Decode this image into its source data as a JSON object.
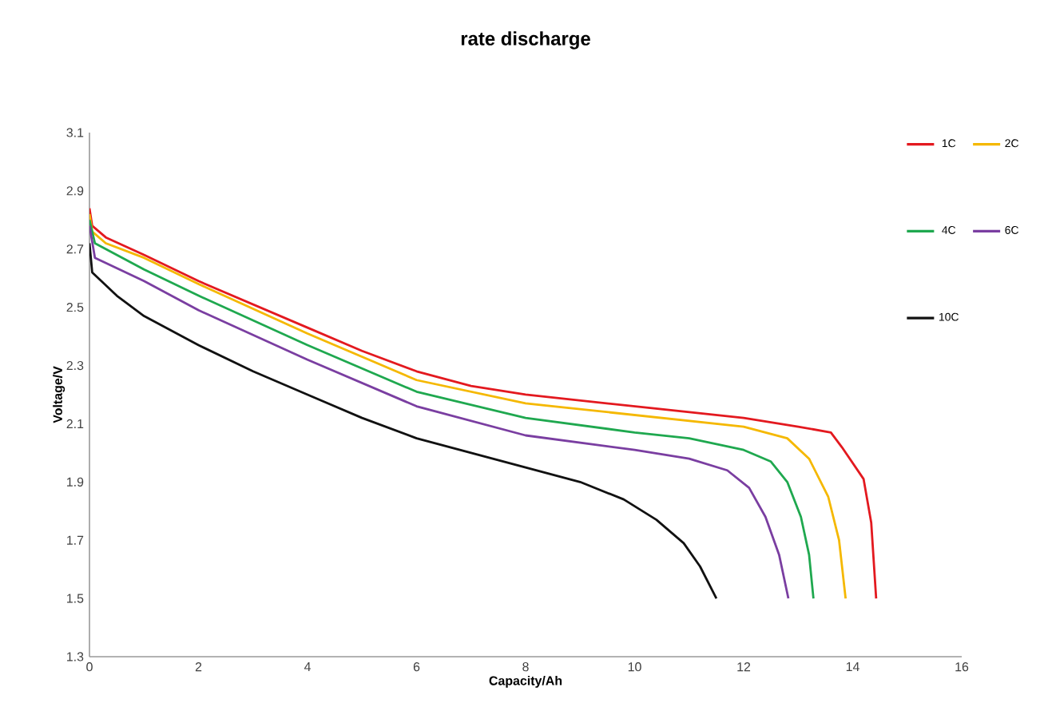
{
  "chart_data": {
    "type": "line",
    "title": "rate discharge",
    "xlabel": "Capacity/Ah",
    "ylabel": "Voltage/V",
    "xlim": [
      0,
      16
    ],
    "xticks": [
      0,
      2,
      4,
      6,
      8,
      10,
      12,
      14,
      16
    ],
    "ylim": [
      1.3,
      3.1
    ],
    "yticks": [
      1.3,
      1.5,
      1.7,
      1.9,
      2.1,
      2.3,
      2.5,
      2.7,
      2.9,
      3.1
    ],
    "legend": "top right",
    "grid": false,
    "series": [
      {
        "name": "1C",
        "color": "#e3191f",
        "x": [
          0,
          0.05,
          0.3,
          1,
          2,
          3,
          4,
          5,
          6,
          7,
          8,
          9,
          10,
          11,
          12,
          13,
          13.6,
          13.8,
          14.2,
          14.34,
          14.43
        ],
        "values": [
          2.84,
          2.78,
          2.74,
          2.68,
          2.59,
          2.51,
          2.43,
          2.35,
          2.28,
          2.23,
          2.2,
          2.18,
          2.16,
          2.14,
          2.12,
          2.09,
          2.07,
          2.02,
          1.91,
          1.76,
          1.5
        ]
      },
      {
        "name": "2C",
        "color": "#f5b800",
        "x": [
          0,
          0.05,
          0.3,
          1,
          2,
          4,
          6,
          8,
          10,
          12,
          12.8,
          13.2,
          13.55,
          13.75,
          13.87
        ],
        "values": [
          2.82,
          2.76,
          2.72,
          2.67,
          2.58,
          2.41,
          2.25,
          2.17,
          2.13,
          2.09,
          2.05,
          1.98,
          1.85,
          1.7,
          1.5
        ]
      },
      {
        "name": "4C",
        "color": "#1fa84f",
        "x": [
          0,
          0.1,
          1,
          2,
          4,
          6,
          8,
          10,
          11,
          12,
          12.5,
          12.8,
          13.05,
          13.2,
          13.28
        ],
        "values": [
          2.8,
          2.72,
          2.63,
          2.54,
          2.37,
          2.21,
          2.12,
          2.07,
          2.05,
          2.01,
          1.97,
          1.9,
          1.78,
          1.65,
          1.5
        ]
      },
      {
        "name": "6C",
        "color": "#7a3ea1",
        "x": [
          0,
          0.1,
          1,
          2,
          4,
          6,
          8,
          10,
          11,
          11.7,
          12.1,
          12.4,
          12.65,
          12.82
        ],
        "values": [
          2.78,
          2.67,
          2.59,
          2.49,
          2.32,
          2.16,
          2.06,
          2.01,
          1.98,
          1.94,
          1.88,
          1.78,
          1.65,
          1.5
        ]
      },
      {
        "name": "10C",
        "color": "#111111",
        "x": [
          0,
          0.05,
          0.5,
          1,
          2,
          3,
          4,
          5,
          6,
          7,
          8,
          9,
          9.8,
          10.4,
          10.9,
          11.2,
          11.5
        ],
        "values": [
          2.72,
          2.62,
          2.54,
          2.47,
          2.37,
          2.28,
          2.2,
          2.12,
          2.05,
          2.0,
          1.95,
          1.9,
          1.84,
          1.77,
          1.69,
          1.61,
          1.5
        ]
      }
    ]
  }
}
